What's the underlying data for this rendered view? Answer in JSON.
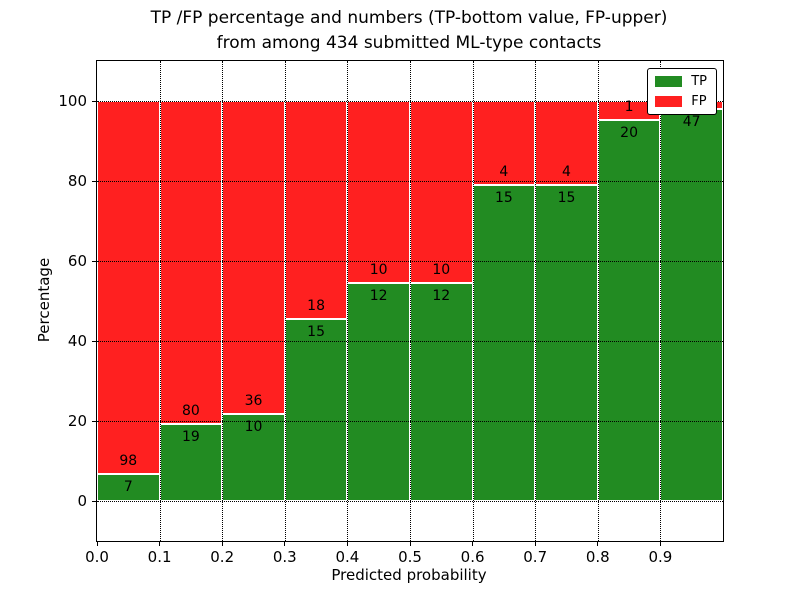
{
  "figure": {
    "title_line1": "TP /FP percentage and numbers (TP-bottom value, FP-upper)",
    "title_line2": "from among 434 submitted ML-type contacts"
  },
  "chart_data": {
    "type": "bar",
    "subtype": "stacked-percentage-histogram",
    "title": "TP /FP percentage and numbers (TP-bottom value, FP-upper)\nfrom among 434 submitted ML-type contacts",
    "xlabel": "Predicted probability",
    "ylabel": "Percentage",
    "total_contacts": 434,
    "bin_width": 0.1,
    "bin_starts": [
      0.0,
      0.1,
      0.2,
      0.3,
      0.4,
      0.5,
      0.6,
      0.7,
      0.8,
      0.9
    ],
    "series": [
      {
        "name": "TP",
        "color": "#228b22",
        "counts": [
          7,
          19,
          10,
          15,
          12,
          12,
          15,
          15,
          20,
          47
        ]
      },
      {
        "name": "FP",
        "color": "#ff2020",
        "counts": [
          98,
          80,
          36,
          18,
          10,
          10,
          4,
          4,
          1,
          1
        ]
      }
    ],
    "tp_percent_of_bin": [
      6.7,
      19.2,
      21.7,
      45.5,
      54.5,
      54.5,
      78.9,
      78.9,
      95.2,
      97.9
    ],
    "bars_normalized_to": 100,
    "xticks": [
      "0.0",
      "0.1",
      "0.2",
      "0.3",
      "0.4",
      "0.5",
      "0.6",
      "0.7",
      "0.8",
      "0.9"
    ],
    "yticks": [
      0,
      20,
      40,
      60,
      80,
      100
    ],
    "xlim": [
      0.0,
      1.0
    ],
    "ylim": [
      -10,
      110
    ],
    "grid": "dotted-black-both-axes",
    "bar_edge_color": "#ffffff",
    "legend": {
      "position": "upper right",
      "entries": [
        {
          "label": "TP",
          "color": "#228b22"
        },
        {
          "label": "FP",
          "color": "#ff2020"
        }
      ]
    }
  }
}
